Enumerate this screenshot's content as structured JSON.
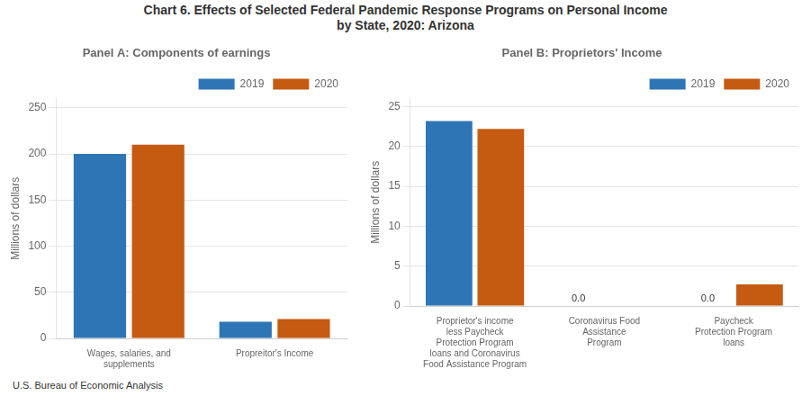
{
  "title": [
    "Chart 6. Effects of Selected Federal Pandemic Response Programs on Personal Income",
    "by State, 2020: Arizona"
  ],
  "annotations": [
    "U.S. Bureau of Economic Analysis"
  ],
  "chart_data": [
    {
      "type": "bar",
      "title": "Panel A: Components of earnings",
      "ylabel": "Millions of dollars",
      "categories": [
        "Wages, salaries, and\nsupplements",
        "Propreitor's Income"
      ],
      "series": [
        {
          "name": "2019",
          "color": "#2E75B6",
          "values": [
            200,
            18
          ]
        },
        {
          "name": "2020",
          "color": "#C55A11",
          "values": [
            210,
            21
          ]
        }
      ],
      "ylim": [
        0,
        260
      ],
      "yticks": [
        0,
        50,
        100,
        150,
        200,
        250
      ],
      "grid": true,
      "legend": "upper right"
    },
    {
      "type": "bar",
      "title": "Panel B: Proprietors' Income",
      "ylabel": "Millions of dollars",
      "categories": [
        "Proprietor's income\nless Paycheck\nProtection Program\nloans and Coronavirus\nFood Assistance Program",
        "Coronavirus Food\nAssistance\nProgram",
        "Paycheck\nProtection Program\nloans"
      ],
      "series": [
        {
          "name": "2019",
          "color": "#2E75B6",
          "values": [
            23.2,
            0.0,
            0.0
          ]
        },
        {
          "name": "2020",
          "color": "#C55A11",
          "values": [
            22.2,
            0.05,
            2.7
          ]
        }
      ],
      "ylim": [
        0,
        26
      ],
      "yticks": [
        0,
        5,
        10,
        15,
        20,
        25
      ],
      "grid": true,
      "legend": "upper right",
      "annotations": [
        {
          "text": "0.0",
          "series": "2019",
          "category": "Coronavirus Food\nAssistance\nProgram"
        },
        {
          "text": "0.0",
          "series": "2019",
          "category": "Paycheck\nProtection Program\nloans"
        }
      ]
    }
  ]
}
